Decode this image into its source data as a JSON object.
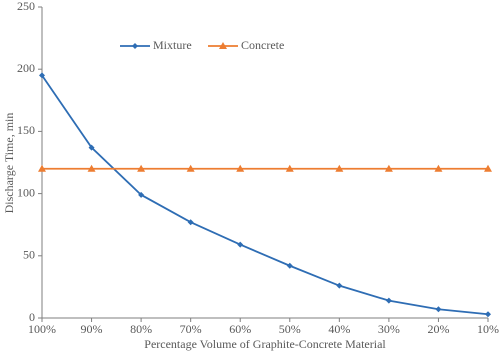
{
  "chart_data": {
    "type": "line",
    "x_label": "Percentage Volume of Graphite-Concrete Material",
    "y_label": "Discharge Time, min",
    "categories": [
      "100%",
      "90%",
      "80%",
      "70%",
      "60%",
      "50%",
      "40%",
      "30%",
      "20%",
      "10%"
    ],
    "series": [
      {
        "name": "Mixture",
        "color": "#2e6db4",
        "marker": "diamond",
        "values": [
          195,
          137,
          99,
          77,
          59,
          42,
          26,
          14,
          7,
          3
        ]
      },
      {
        "name": "Concrete",
        "color": "#ed7d31",
        "marker": "triangle",
        "values": [
          120,
          120,
          120,
          120,
          120,
          120,
          120,
          120,
          120,
          120
        ]
      }
    ],
    "ylim": [
      0,
      250
    ],
    "yticks": [
      0,
      50,
      100,
      150,
      200,
      250
    ],
    "grid": false,
    "legend": "top-left"
  }
}
